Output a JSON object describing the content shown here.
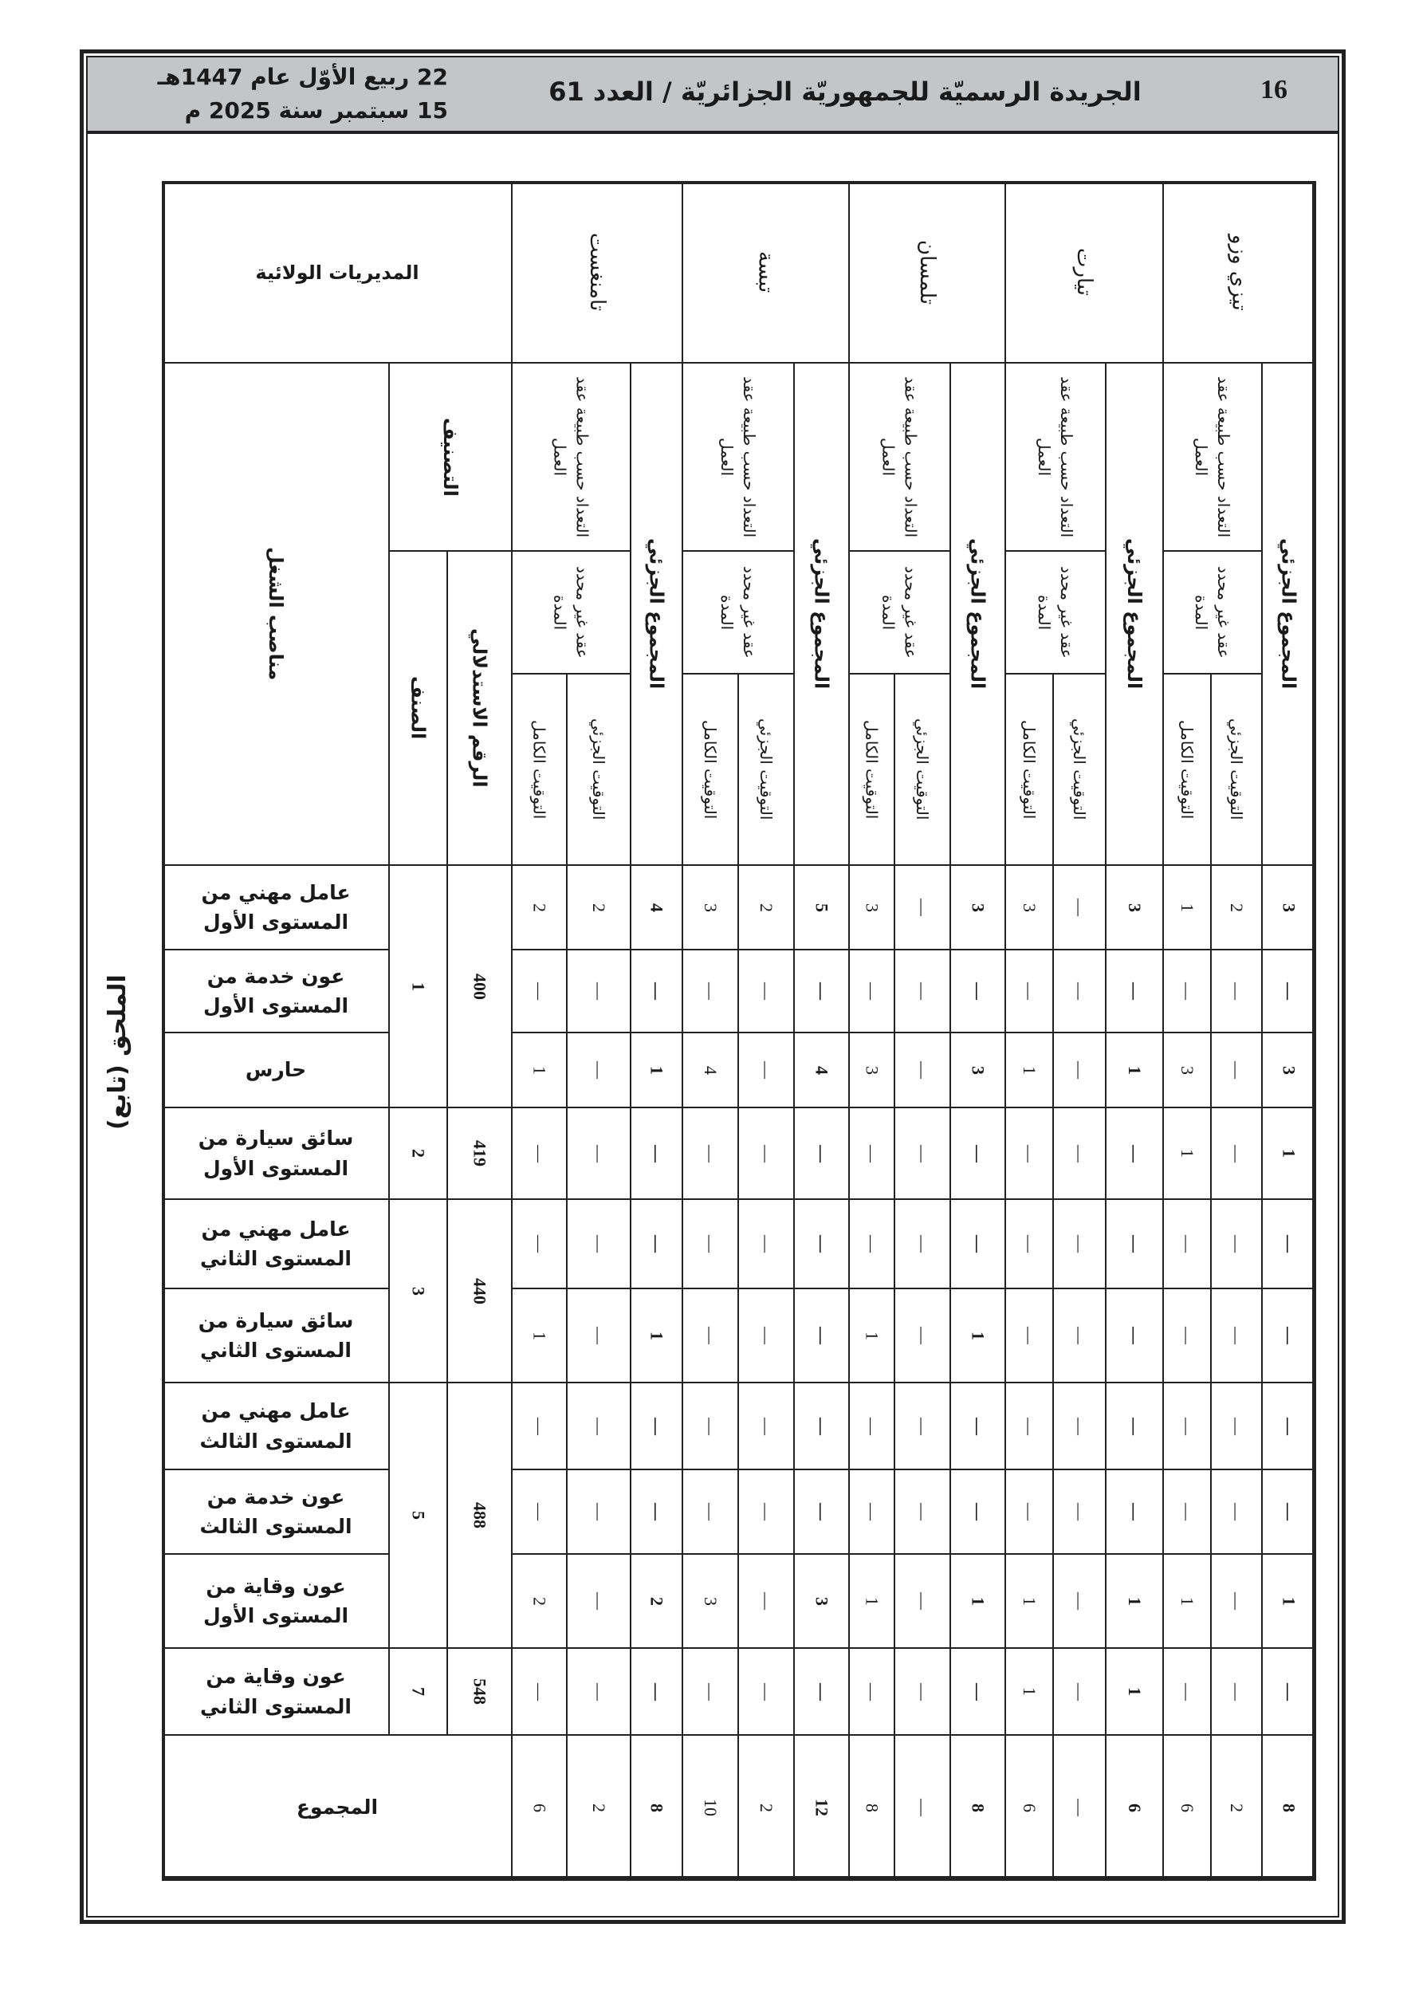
{
  "header": {
    "page_number": "16",
    "title": "الجريدة الرسميّة للجمهوريّة الجزائريّة / العدد 61",
    "date_hijri": "22 ربيع الأوّل عام 1447هـ",
    "date_gregorian": "15 سبتمبر سنة 2025 م"
  },
  "annex_label": "الملحق (تابع)",
  "table": {
    "corner": "المديريات الولائية",
    "jobs_header": "مناصب الشغل",
    "classification": "التصنيف",
    "category": "الصنف",
    "index": "الرقم الاستدلالي",
    "count_by": "التعداد حسب طبيعة عقد العمل",
    "contract": "عقد غير محدد المدة",
    "full_time": "التوقيت الكامل",
    "part_time": "التوقيت الجزئي",
    "subtotal": "المجموع الجزئي",
    "total_label": "المجموع",
    "wilayas": [
      "تامنغست",
      "تبسة",
      "تلمسان",
      "تيارت",
      "تيزي وزو"
    ],
    "groups": [
      {
        "category": "1",
        "index": "400"
      },
      {
        "category": "2",
        "index": "419"
      },
      {
        "category": "3",
        "index": "440"
      },
      {
        "category": "5",
        "index": "488"
      },
      {
        "category": "7",
        "index": "548"
      }
    ],
    "rows": [
      {
        "job": "عامل مهني من المستوى الأول",
        "values": [
          "2",
          "2",
          "4",
          "3",
          "2",
          "5",
          "3",
          "—",
          "3",
          "3",
          "—",
          "3",
          "1",
          "2",
          "3"
        ]
      },
      {
        "job": "عون خدمة من المستوى الأول",
        "values": [
          "—",
          "—",
          "—",
          "—",
          "—",
          "—",
          "—",
          "—",
          "—",
          "—",
          "—",
          "—",
          "—",
          "—",
          "—"
        ]
      },
      {
        "job": "حارس",
        "values": [
          "1",
          "—",
          "1",
          "4",
          "—",
          "4",
          "3",
          "—",
          "3",
          "1",
          "—",
          "1",
          "3",
          "—",
          "3"
        ]
      },
      {
        "job": "سائق سيارة من المستوى الأول",
        "values": [
          "—",
          "—",
          "—",
          "—",
          "—",
          "—",
          "—",
          "—",
          "—",
          "—",
          "—",
          "—",
          "1",
          "—",
          "1"
        ]
      },
      {
        "job": "عامل مهني من المستوى الثاني",
        "values": [
          "—",
          "—",
          "—",
          "—",
          "—",
          "—",
          "—",
          "—",
          "—",
          "—",
          "—",
          "—",
          "—",
          "—",
          "—"
        ]
      },
      {
        "job": "سائق سيارة من المستوى الثاني",
        "values": [
          "1",
          "—",
          "1",
          "—",
          "—",
          "—",
          "1",
          "—",
          "1",
          "—",
          "—",
          "—",
          "—",
          "—",
          "—"
        ]
      },
      {
        "job": "عامل مهني من المستوى الثالث",
        "values": [
          "—",
          "—",
          "—",
          "—",
          "—",
          "—",
          "—",
          "—",
          "—",
          "—",
          "—",
          "—",
          "—",
          "—",
          "—"
        ]
      },
      {
        "job": "عون خدمة من المستوى الثالث",
        "values": [
          "—",
          "—",
          "—",
          "—",
          "—",
          "—",
          "—",
          "—",
          "—",
          "—",
          "—",
          "—",
          "—",
          "—",
          "—"
        ]
      },
      {
        "job": "عون وقاية من المستوى الأول",
        "values": [
          "2",
          "—",
          "2",
          "3",
          "—",
          "3",
          "1",
          "—",
          "1",
          "1",
          "—",
          "1",
          "1",
          "—",
          "1"
        ]
      },
      {
        "job": "عون وقاية من المستوى الثاني",
        "values": [
          "—",
          "—",
          "—",
          "—",
          "—",
          "—",
          "—",
          "—",
          "—",
          "1",
          "—",
          "1",
          "—",
          "—",
          "—"
        ]
      }
    ],
    "totals": [
      "6",
      "2",
      "8",
      "10",
      "2",
      "12",
      "8",
      "—",
      "8",
      "6",
      "—",
      "6",
      "6",
      "2",
      "8"
    ]
  }
}
